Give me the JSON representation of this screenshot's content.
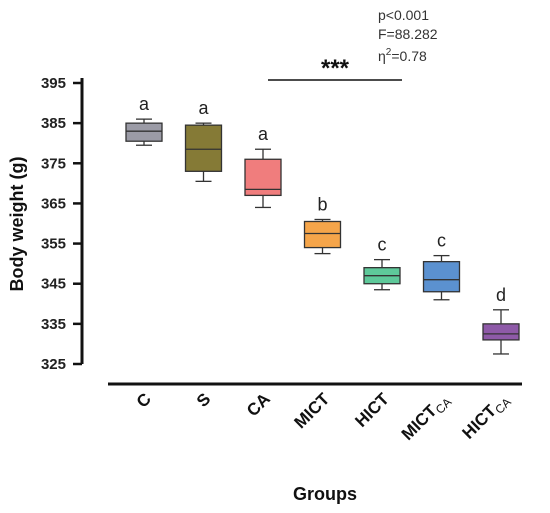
{
  "chart_data": {
    "type": "box",
    "xlabel": "Groups",
    "ylabel": "Body weight  (g)",
    "ylim": [
      325,
      395
    ],
    "yticks": [
      325,
      335,
      345,
      355,
      365,
      375,
      385,
      395
    ],
    "categories": [
      {
        "main": "C",
        "sub": ""
      },
      {
        "main": "S",
        "sub": ""
      },
      {
        "main": "CA",
        "sub": ""
      },
      {
        "main": "MICT",
        "sub": ""
      },
      {
        "main": "HICT",
        "sub": ""
      },
      {
        "main": "MICT",
        "sub": "CA"
      },
      {
        "main": "HICT",
        "sub": "CA"
      }
    ],
    "boxes": [
      {
        "min": 379.5,
        "q1": 380.5,
        "median": 383.0,
        "q3": 385.0,
        "max": 386.0,
        "color": "#9b9ba6",
        "letter": "a"
      },
      {
        "min": 370.5,
        "q1": 373.0,
        "median": 378.5,
        "q3": 384.5,
        "max": 385.0,
        "color": "#857a36",
        "letter": "a"
      },
      {
        "min": 364.0,
        "q1": 367.0,
        "median": 368.5,
        "q3": 376.0,
        "max": 378.5,
        "color": "#f07d7d",
        "letter": "a"
      },
      {
        "min": 352.5,
        "q1": 354.0,
        "median": 357.5,
        "q3": 360.5,
        "max": 361.0,
        "color": "#f5a54a",
        "letter": "b"
      },
      {
        "min": 343.5,
        "q1": 345.0,
        "median": 347.0,
        "q3": 349.0,
        "max": 351.0,
        "color": "#5ec99a",
        "letter": "c"
      },
      {
        "min": 341.0,
        "q1": 343.0,
        "median": 346.0,
        "q3": 350.5,
        "max": 352.0,
        "color": "#5b91d0",
        "letter": "c"
      },
      {
        "min": 327.5,
        "q1": 331.0,
        "median": 332.5,
        "q3": 335.0,
        "max": 338.5,
        "color": "#8e5aa8",
        "letter": "d"
      }
    ],
    "significance": {
      "stars": "***",
      "p_text": "p<0.001",
      "f_text": "F=88.282",
      "eta_base": "η",
      "eta_sup": "2",
      "eta_value": "=0.78"
    }
  }
}
